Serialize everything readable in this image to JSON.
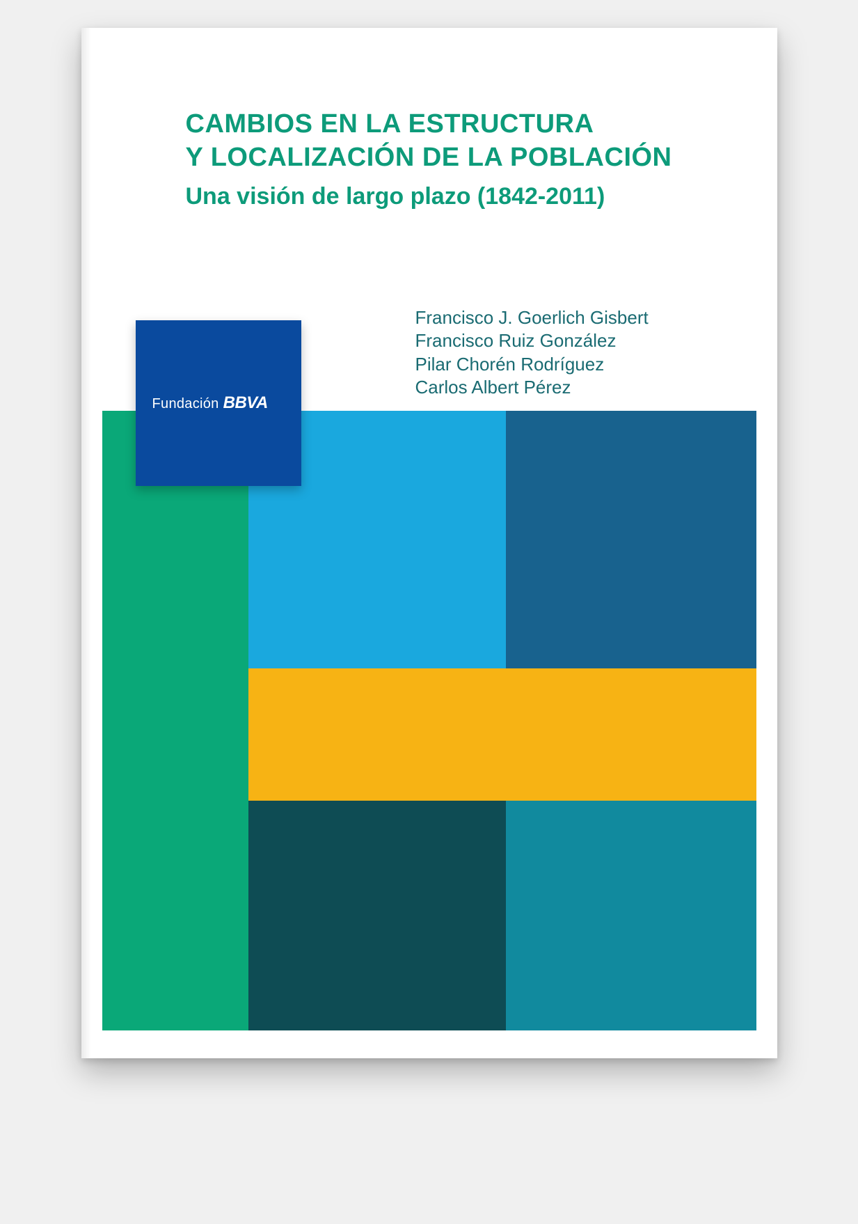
{
  "title": {
    "line1": "CAMBIOS EN LA ESTRUCTURA",
    "line2": "Y LOCALIZACIÓN DE LA POBLACIÓN",
    "subtitle": "Una visión de largo plazo (1842-2011)",
    "color": "#0d9b7a"
  },
  "authors": {
    "color": "#1a6b72",
    "list": [
      "Francisco J. Goerlich Gisbert",
      "Francisco Ruiz González",
      "Pilar Chorén Rodríguez",
      "Carlos Albert Pérez"
    ]
  },
  "logo": {
    "prefix": "Fundación",
    "brand": "BBVA",
    "bg": "#0a4a9e"
  },
  "grid": {
    "row1": {
      "c1": "#0aa878",
      "c2": "#1aa8de",
      "c3": "#18628e"
    },
    "row2": {
      "c1": "#0aa878",
      "c2": "#f7b314"
    },
    "row3": {
      "c1": "#0aa878",
      "c2": "#0e4c54",
      "c3": "#118a9e"
    }
  },
  "page": {
    "bg": "#ffffff"
  }
}
